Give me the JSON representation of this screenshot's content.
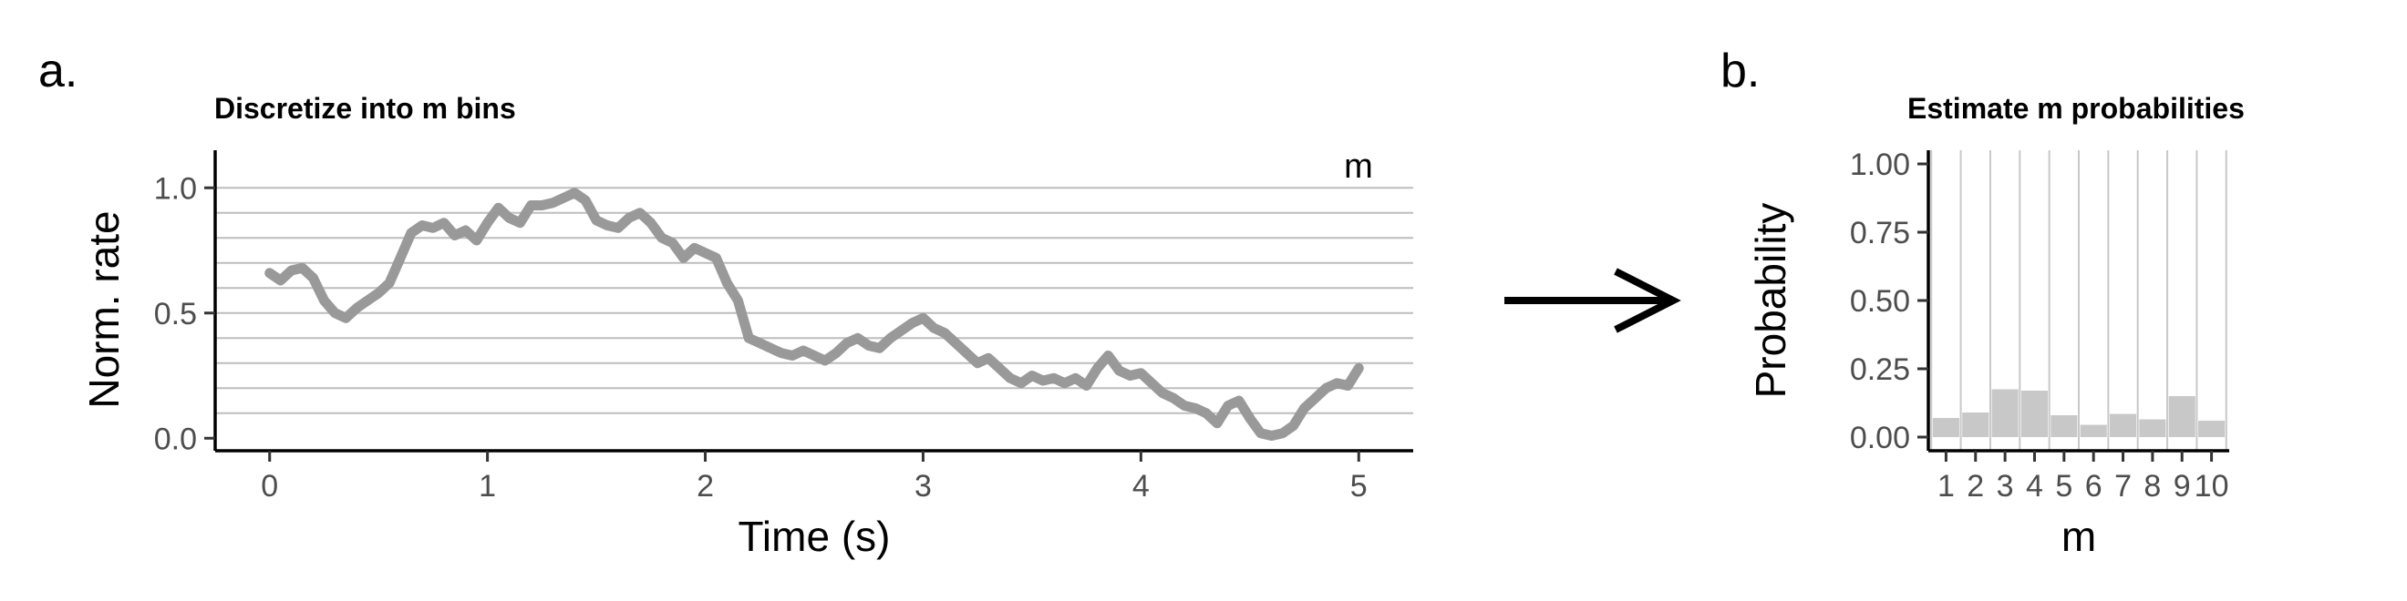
{
  "panels": {
    "a": "a.",
    "b": "b."
  },
  "chart_data": [
    {
      "type": "line",
      "title": "Discretize into m bins",
      "xlabel": "Time (s)",
      "ylabel": "Norm. rate",
      "xlim": [
        -0.25,
        5.25
      ],
      "ylim": [
        -0.05,
        1.15
      ],
      "xticks": [
        "0",
        "1",
        "2",
        "3",
        "4",
        "5"
      ],
      "yticks": [
        "0.0",
        "0.5",
        "1.0"
      ],
      "annotation": "m",
      "bin_edges": [
        0.1,
        0.2,
        0.3,
        0.4,
        0.5,
        0.6,
        0.7,
        0.8,
        0.9,
        1.0
      ],
      "line_color": "#999999",
      "bin_line_color": "#bdbdbd",
      "series": [
        {
          "x": [
            0,
            0.05,
            0.1,
            0.15,
            0.2,
            0.25,
            0.3,
            0.35,
            0.4,
            0.45,
            0.5,
            0.55,
            0.6,
            0.65,
            0.7,
            0.75,
            0.8,
            0.85,
            0.9,
            0.95,
            1.0,
            1.05,
            1.1,
            1.15,
            1.2,
            1.25,
            1.3,
            1.35,
            1.4,
            1.45,
            1.5,
            1.55,
            1.6,
            1.65,
            1.7,
            1.75,
            1.8,
            1.85,
            1.9,
            1.95,
            2.0,
            2.05,
            2.1,
            2.15,
            2.2,
            2.25,
            2.3,
            2.35,
            2.4,
            2.45,
            2.5,
            2.55,
            2.6,
            2.65,
            2.7,
            2.75,
            2.8,
            2.85,
            2.9,
            2.95,
            3.0,
            3.05,
            3.1,
            3.15,
            3.2,
            3.25,
            3.3,
            3.35,
            3.4,
            3.45,
            3.5,
            3.55,
            3.6,
            3.65,
            3.7,
            3.75,
            3.8,
            3.85,
            3.9,
            3.95,
            4.0,
            4.05,
            4.1,
            4.15,
            4.2,
            4.25,
            4.3,
            4.35,
            4.4,
            4.45,
            4.5,
            4.55,
            4.6,
            4.65,
            4.7,
            4.75,
            4.8,
            4.85,
            4.9,
            4.95,
            5.0
          ],
          "y": [
            0.66,
            0.63,
            0.67,
            0.68,
            0.64,
            0.55,
            0.5,
            0.48,
            0.52,
            0.55,
            0.58,
            0.62,
            0.72,
            0.82,
            0.85,
            0.84,
            0.86,
            0.81,
            0.83,
            0.79,
            0.86,
            0.92,
            0.88,
            0.86,
            0.93,
            0.93,
            0.94,
            0.96,
            0.98,
            0.95,
            0.87,
            0.85,
            0.84,
            0.88,
            0.9,
            0.86,
            0.8,
            0.78,
            0.72,
            0.76,
            0.74,
            0.72,
            0.62,
            0.55,
            0.4,
            0.38,
            0.36,
            0.34,
            0.33,
            0.35,
            0.33,
            0.31,
            0.34,
            0.38,
            0.4,
            0.37,
            0.36,
            0.4,
            0.43,
            0.46,
            0.48,
            0.44,
            0.42,
            0.38,
            0.34,
            0.3,
            0.32,
            0.28,
            0.24,
            0.22,
            0.25,
            0.23,
            0.24,
            0.22,
            0.24,
            0.21,
            0.28,
            0.33,
            0.27,
            0.25,
            0.26,
            0.22,
            0.18,
            0.16,
            0.13,
            0.12,
            0.1,
            0.06,
            0.13,
            0.15,
            0.08,
            0.02,
            0.01,
            0.02,
            0.05,
            0.12,
            0.16,
            0.2,
            0.22,
            0.21,
            0.28
          ]
        }
      ]
    },
    {
      "type": "bar",
      "title": "Estimate m probabilities",
      "xlabel": "m",
      "ylabel": "Probability",
      "ylim": [
        -0.05,
        1.05
      ],
      "yticks": [
        "0.00",
        "0.25",
        "0.50",
        "0.75",
        "1.00"
      ],
      "categories": [
        "1",
        "2",
        "3",
        "4",
        "5",
        "6",
        "7",
        "8",
        "9",
        "10"
      ],
      "values": [
        0.07,
        0.09,
        0.175,
        0.17,
        0.08,
        0.045,
        0.085,
        0.065,
        0.15,
        0.06
      ],
      "bar_color": "#c8c8c8"
    }
  ],
  "arrow": {
    "icon": "right-arrow-icon",
    "color": "#000000"
  }
}
